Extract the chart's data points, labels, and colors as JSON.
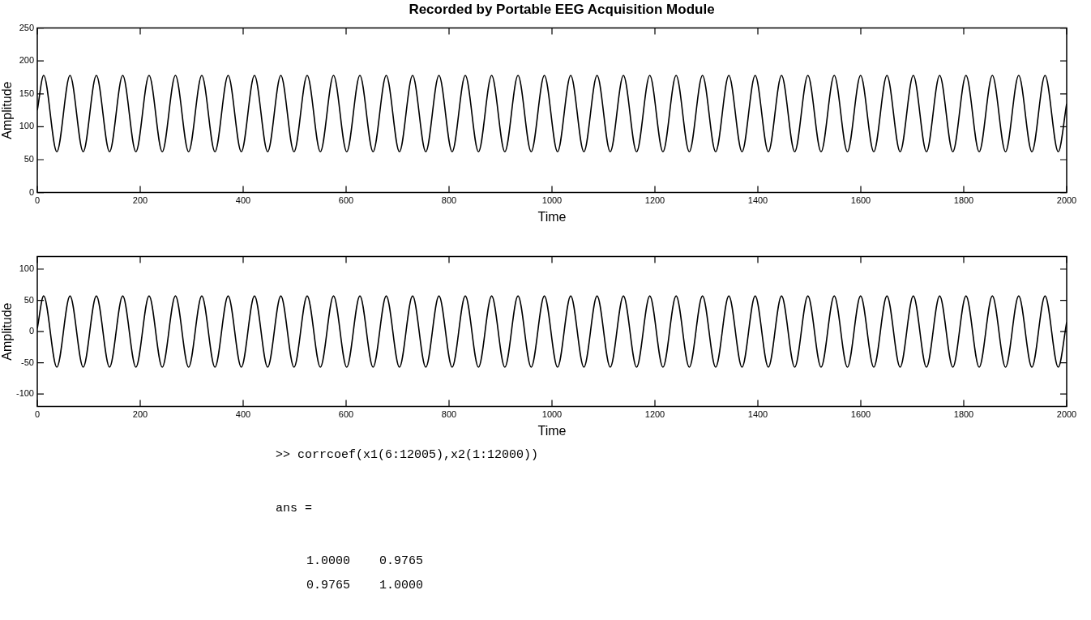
{
  "chart_data": [
    {
      "type": "line",
      "title": "Recorded by Portable EEG Acquisition Module",
      "xlabel": "Time",
      "ylabel": "Amplitude",
      "marker": "none",
      "xlim": [
        0,
        2000
      ],
      "xticks": [
        0,
        200,
        400,
        600,
        800,
        1000,
        1200,
        1400,
        1600,
        1800,
        2000
      ],
      "ylim": [
        0,
        250
      ],
      "yticks": [
        0,
        50,
        100,
        150,
        200,
        250
      ],
      "x": [
        0,
        12.4,
        38.0,
        63.6,
        89.2,
        114.8,
        140.4,
        166.0,
        191.6,
        217.2,
        242.8,
        268.4,
        294.0,
        319.6,
        345.2,
        370.8,
        396.4,
        422.0,
        447.6,
        473.2,
        498.8,
        524.4,
        550.0,
        575.6,
        601.2,
        626.8,
        652.4,
        678.0,
        703.6,
        729.2,
        754.8,
        780.4,
        806.0,
        831.6,
        857.2,
        882.8,
        908.4,
        934.0,
        959.6,
        985.2,
        1010.8,
        1036.4,
        1062.0,
        1087.6,
        1113.2,
        1138.8,
        1164.4,
        1190.0,
        1215.6,
        1241.2,
        1266.8,
        1292.4,
        1318.0,
        1343.6,
        1369.2,
        1394.8,
        1420.4,
        1446.0,
        1471.6,
        1497.2,
        1522.8,
        1548.4,
        1574.0,
        1599.6,
        1625.2,
        1650.8,
        1676.4,
        1702.0,
        1727.6,
        1753.2,
        1778.8,
        1804.4,
        1830.0,
        1855.6,
        1881.2,
        1906.8,
        1932.4,
        1958.0,
        1983.6,
        2000
      ],
      "series": [
        {
          "color": "#000000",
          "values": [
            125,
            178,
            62,
            178,
            62,
            178,
            62,
            178,
            62,
            178,
            62,
            178,
            62,
            178,
            62,
            178,
            62,
            178,
            62,
            178,
            62,
            178,
            62,
            178,
            62,
            178,
            62,
            178,
            62,
            178,
            62,
            178,
            62,
            178,
            62,
            178,
            62,
            178,
            62,
            178,
            62,
            178,
            62,
            178,
            62,
            178,
            62,
            178,
            62,
            178,
            62,
            178,
            62,
            178,
            62,
            178,
            62,
            178,
            62,
            178,
            62,
            178,
            62,
            178,
            62,
            178,
            62,
            178,
            62,
            178,
            62,
            178,
            62,
            178,
            62,
            178,
            62,
            178,
            62,
            135
          ]
        }
      ]
    },
    {
      "type": "line",
      "xlabel": "Time",
      "ylabel": "Amplitude",
      "marker": "none",
      "xlim": [
        0,
        2000
      ],
      "xticks": [
        0,
        200,
        400,
        600,
        800,
        1000,
        1200,
        1400,
        1600,
        1800,
        2000
      ],
      "ylim": [
        -120,
        120
      ],
      "yticks": [
        -100,
        -50,
        0,
        50,
        100
      ],
      "x": [
        0,
        12.4,
        38.0,
        63.6,
        89.2,
        114.8,
        140.4,
        166.0,
        191.6,
        217.2,
        242.8,
        268.4,
        294.0,
        319.6,
        345.2,
        370.8,
        396.4,
        422.0,
        447.6,
        473.2,
        498.8,
        524.4,
        550.0,
        575.6,
        601.2,
        626.8,
        652.4,
        678.0,
        703.6,
        729.2,
        754.8,
        780.4,
        806.0,
        831.6,
        857.2,
        882.8,
        908.4,
        934.0,
        959.6,
        985.2,
        1010.8,
        1036.4,
        1062.0,
        1087.6,
        1113.2,
        1138.8,
        1164.4,
        1190.0,
        1215.6,
        1241.2,
        1266.8,
        1292.4,
        1318.0,
        1343.6,
        1369.2,
        1394.8,
        1420.4,
        1446.0,
        1471.6,
        1497.2,
        1522.8,
        1548.4,
        1574.0,
        1599.6,
        1625.2,
        1650.8,
        1676.4,
        1702.0,
        1727.6,
        1753.2,
        1778.8,
        1804.4,
        1830.0,
        1855.6,
        1881.2,
        1906.8,
        1932.4,
        1958.0,
        1983.6,
        2000
      ],
      "series": [
        {
          "color": "#000000",
          "values": [
            5,
            57,
            -57,
            57,
            -57,
            57,
            -57,
            57,
            -57,
            57,
            -57,
            57,
            -57,
            57,
            -57,
            57,
            -57,
            57,
            -57,
            57,
            -57,
            57,
            -57,
            57,
            -57,
            57,
            -57,
            57,
            -57,
            57,
            -57,
            57,
            -57,
            57,
            -57,
            57,
            -57,
            57,
            -57,
            57,
            -57,
            57,
            -57,
            57,
            -57,
            57,
            -57,
            57,
            -57,
            57,
            -57,
            57,
            -57,
            57,
            -57,
            57,
            -57,
            57,
            -57,
            57,
            -57,
            57,
            -57,
            57,
            -57,
            57,
            -57,
            57,
            -57,
            57,
            -57,
            57,
            -57,
            57,
            -57,
            57,
            -57,
            57,
            -57,
            15
          ]
        }
      ],
      "annotations": [
        ">> corrcoef(x1(6:12005),x2(1:12000))",
        "ans =",
        "1.0000    0.9765",
        "0.9765    1.0000"
      ]
    }
  ]
}
